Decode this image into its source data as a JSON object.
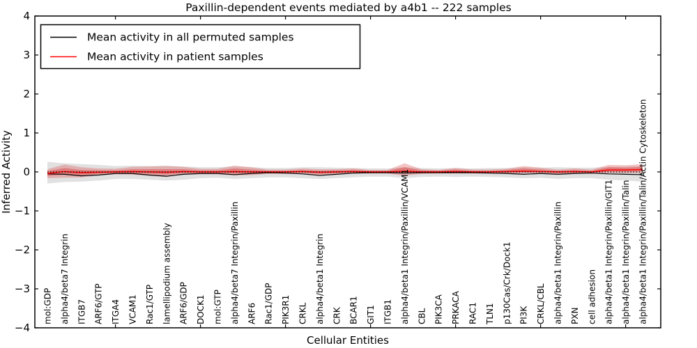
{
  "chart_data": {
    "type": "line",
    "title": "Paxillin-dependent events mediated by a4b1 -- 222 samples",
    "xlabel": "Cellular Entities",
    "ylabel": "Inferred Activity",
    "ylim": [
      -4,
      4
    ],
    "yticks": [
      {
        "value": 4,
        "label": "4"
      },
      {
        "value": 3,
        "label": "3"
      },
      {
        "value": 2,
        "label": "2"
      },
      {
        "value": 1,
        "label": "1"
      },
      {
        "value": 0,
        "label": "0"
      },
      {
        "value": -1,
        "label": "−1"
      },
      {
        "value": -2,
        "label": "−2"
      },
      {
        "value": -3,
        "label": "−3"
      },
      {
        "value": -4,
        "label": "−4"
      }
    ],
    "xtick_indices": [
      4,
      9,
      14,
      19,
      24,
      29,
      34
    ],
    "grid": false,
    "legend_position": "upper left",
    "zero_reference_line": {
      "value": 0,
      "style": "dotted",
      "color": "#000000"
    },
    "categories": [
      "mol:GDP",
      "alpha4/beta7 Integrin",
      "ITGB7",
      "ARF6/GTP",
      "ITGA4",
      "VCAM1",
      "Rac1/GTP",
      "lamellipodium assembly",
      "ARF6/GDP",
      "DOCK1",
      "mol:GTP",
      "alpha4/beta7 Integrin/Paxillin",
      "ARF6",
      "Rac1/GDP",
      "PIK3R1",
      "CRKL",
      "alpha4/beta1 Integrin",
      "CRK",
      "BCAR1",
      "GIT1",
      "ITGB1",
      "alpha4/beta1 Integrin/Paxillin/VCAM1",
      "CBL",
      "PIK3CA",
      "PRKACA",
      "RAC1",
      "TLN1",
      "p130Cas/Crk/Dock1",
      "PI3K",
      "CRKL/CBL",
      "alpha4/beta1 Integrin/Paxillin",
      "PXN",
      "cell adhesion",
      "alpha4/beta1 Integrin/Paxillin/GIT1",
      "alpha4/beta1 Integrin/Paxillin/Talin",
      "alpha4/beta1 Integrin/Paxillin/Talin/Actin Cytoskeleton"
    ],
    "series": [
      {
        "name": "Mean activity in all permuted samples",
        "color": "#000000",
        "values": [
          -0.05,
          -0.06,
          -0.1,
          -0.08,
          -0.04,
          -0.04,
          -0.08,
          -0.11,
          -0.06,
          -0.04,
          -0.04,
          -0.07,
          -0.04,
          -0.02,
          -0.03,
          -0.05,
          -0.09,
          -0.06,
          -0.03,
          -0.02,
          -0.02,
          -0.03,
          -0.02,
          -0.02,
          -0.02,
          -0.02,
          -0.03,
          -0.04,
          -0.06,
          -0.04,
          -0.06,
          -0.04,
          -0.03,
          -0.05,
          -0.06,
          -0.07
        ]
      },
      {
        "name": "Mean activity in patient samples",
        "color": "#ff0000",
        "values": [
          -0.04,
          0.01,
          -0.02,
          -0.01,
          0.0,
          0.01,
          0.0,
          -0.01,
          0.01,
          0.0,
          0.0,
          0.01,
          0.0,
          0.0,
          0.0,
          0.01,
          -0.01,
          0.0,
          0.01,
          0.0,
          0.0,
          0.02,
          0.0,
          0.0,
          0.01,
          0.0,
          0.0,
          0.01,
          0.02,
          0.01,
          0.0,
          0.01,
          0.0,
          0.05,
          0.05,
          0.06
        ]
      }
    ],
    "bands": [
      {
        "name": "permuted-samples-range",
        "color": "#888888",
        "opacity": 0.25,
        "upper": [
          0.26,
          0.22,
          0.2,
          0.18,
          0.15,
          0.16,
          0.15,
          0.16,
          0.14,
          0.12,
          0.12,
          0.14,
          0.12,
          0.1,
          0.1,
          0.12,
          0.12,
          0.11,
          0.1,
          0.09,
          0.09,
          0.12,
          0.1,
          0.09,
          0.1,
          0.09,
          0.1,
          0.1,
          0.12,
          0.11,
          0.12,
          0.11,
          0.11,
          0.13,
          0.14,
          0.15
        ],
        "lower": [
          -0.3,
          -0.26,
          -0.25,
          -0.22,
          -0.18,
          -0.18,
          -0.2,
          -0.22,
          -0.2,
          -0.16,
          -0.15,
          -0.18,
          -0.16,
          -0.14,
          -0.14,
          -0.16,
          -0.18,
          -0.16,
          -0.14,
          -0.12,
          -0.12,
          -0.16,
          -0.13,
          -0.12,
          -0.13,
          -0.12,
          -0.13,
          -0.14,
          -0.16,
          -0.15,
          -0.18,
          -0.16,
          -0.16,
          -0.2,
          -0.22,
          -0.25
        ]
      },
      {
        "name": "patient-samples-range-outer",
        "color": "#e05555",
        "opacity": 0.35,
        "upper": [
          0.07,
          0.19,
          0.12,
          0.09,
          0.08,
          0.13,
          0.14,
          0.15,
          0.13,
          0.08,
          0.08,
          0.16,
          0.12,
          0.06,
          0.06,
          0.09,
          0.07,
          0.07,
          0.09,
          0.05,
          0.05,
          0.22,
          0.07,
          0.05,
          0.1,
          0.06,
          0.06,
          0.08,
          0.15,
          0.11,
          0.06,
          0.09,
          0.06,
          0.18,
          0.17,
          0.2
        ],
        "lower": [
          -0.16,
          -0.15,
          -0.14,
          -0.09,
          -0.06,
          -0.07,
          -0.1,
          -0.13,
          -0.07,
          -0.06,
          -0.06,
          -0.09,
          -0.08,
          -0.05,
          -0.05,
          -0.05,
          -0.09,
          -0.06,
          -0.04,
          -0.04,
          -0.04,
          -0.1,
          -0.05,
          -0.04,
          -0.04,
          -0.04,
          -0.04,
          -0.05,
          -0.04,
          -0.03,
          -0.06,
          -0.04,
          -0.04,
          -0.03,
          -0.03,
          -0.03
        ]
      },
      {
        "name": "patient-samples-range-inner",
        "color": "#dd3333",
        "opacity": 0.4,
        "upper": [
          0.02,
          0.1,
          0.05,
          0.04,
          0.04,
          0.07,
          0.07,
          0.07,
          0.07,
          0.04,
          0.04,
          0.09,
          0.06,
          0.03,
          0.03,
          0.05,
          0.03,
          0.04,
          0.05,
          0.03,
          0.03,
          0.12,
          0.04,
          0.03,
          0.06,
          0.03,
          0.03,
          0.05,
          0.09,
          0.06,
          0.03,
          0.05,
          0.03,
          0.12,
          0.11,
          0.13
        ],
        "lower": [
          -0.1,
          -0.07,
          -0.08,
          -0.05,
          -0.03,
          -0.03,
          -0.05,
          -0.07,
          -0.03,
          -0.03,
          -0.03,
          -0.04,
          -0.04,
          -0.03,
          -0.03,
          -0.02,
          -0.05,
          -0.03,
          -0.02,
          -0.02,
          -0.02,
          -0.04,
          -0.03,
          -0.02,
          -0.02,
          -0.02,
          -0.02,
          -0.02,
          -0.01,
          -0.01,
          -0.03,
          -0.02,
          -0.02,
          0.01,
          0.01,
          0.02
        ]
      }
    ]
  }
}
